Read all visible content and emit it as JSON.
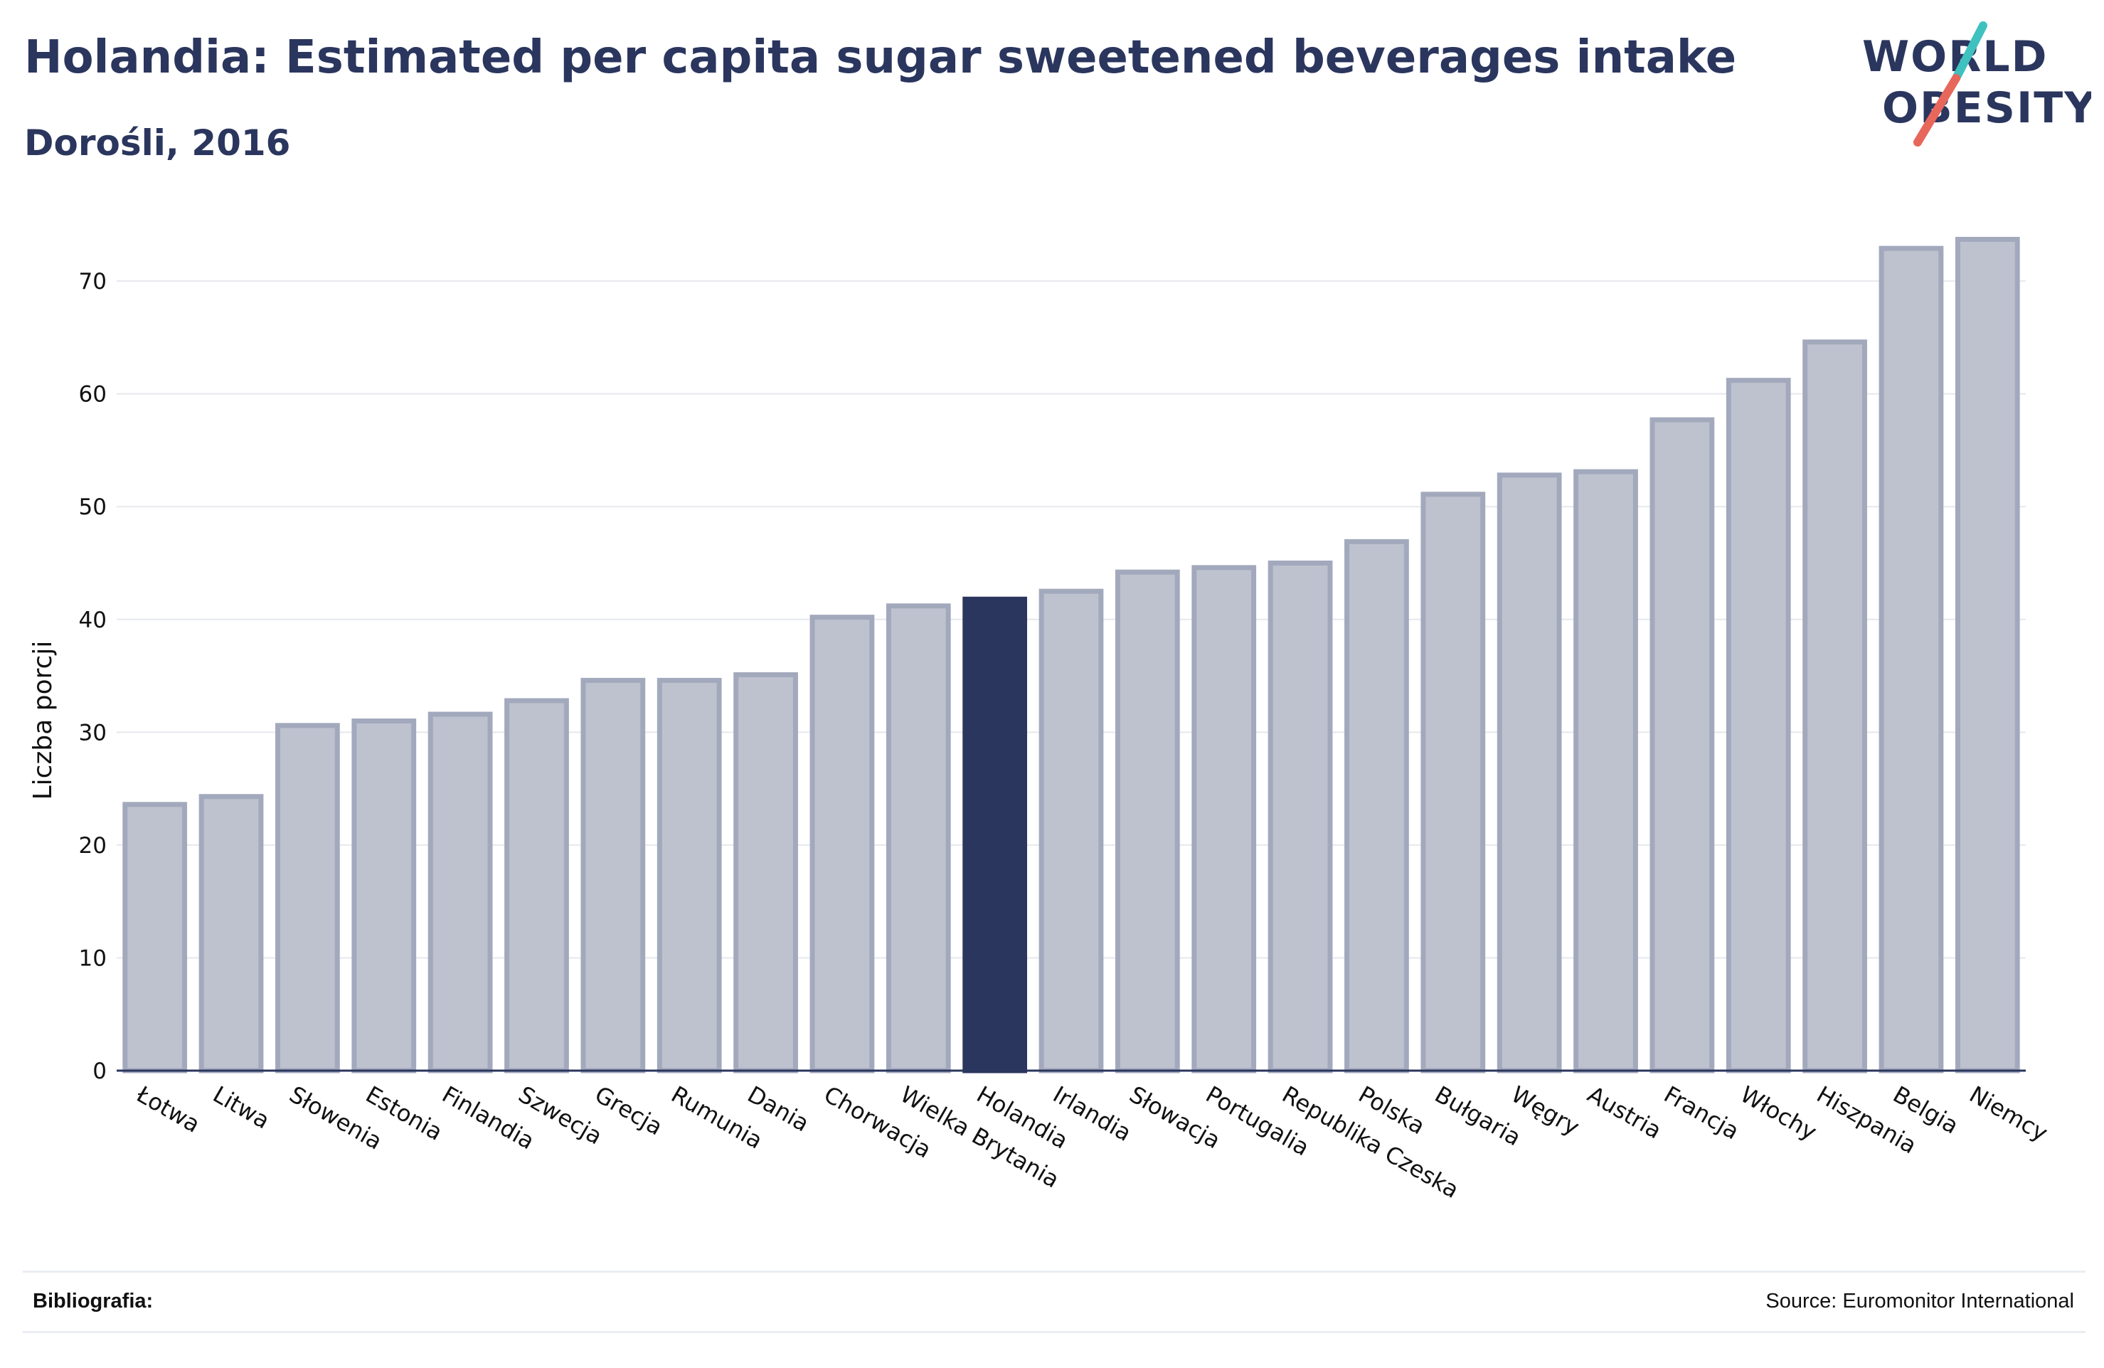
{
  "header": {
    "title": "Holandia: Estimated per capita sugar sweetened beverages intake",
    "subtitle": "Dorośli, 2016"
  },
  "logo": {
    "line1": "WORLD",
    "line2": "OBESITY",
    "accent_colors": [
      "#3fc1c0",
      "#e8675b"
    ],
    "text_color": "#2b365e"
  },
  "footer": {
    "bibliography_label": "Bibliografia:",
    "source": "Source: Euromonitor International"
  },
  "chart_data": {
    "type": "bar",
    "ylabel": "Liczba porcji",
    "xlabel": "",
    "ylim": [
      0,
      76
    ],
    "yticks": [
      0,
      10,
      20,
      30,
      40,
      50,
      60,
      70
    ],
    "grid": true,
    "highlight": "Holandia",
    "colors": {
      "bar": "#bec2cf",
      "bar_border": "#a3a9bc",
      "highlight": "#2b365e",
      "grid": "#e6e8ee",
      "axis": "#2b365e"
    },
    "categories": [
      "Łotwa",
      "Litwa",
      "Słowenia",
      "Estonia",
      "Finlandia",
      "Szwecja",
      "Grecja",
      "Rumunia",
      "Dania",
      "Chorwacja",
      "Wielka Brytania",
      "Holandia",
      "Irlandia",
      "Słowacja",
      "Portugalia",
      "Republika Czeska",
      "Polska",
      "Bułgaria",
      "Węgry",
      "Austria",
      "Francja",
      "Włochy",
      "Hiszpania",
      "Belgia",
      "Niemcy"
    ],
    "values": [
      23.6,
      24.3,
      30.6,
      31.0,
      31.6,
      32.8,
      34.6,
      34.6,
      35.1,
      40.2,
      41.2,
      41.8,
      42.5,
      44.2,
      44.6,
      45.0,
      46.9,
      51.1,
      52.8,
      53.1,
      57.7,
      61.2,
      64.6,
      72.9,
      73.7
    ]
  }
}
